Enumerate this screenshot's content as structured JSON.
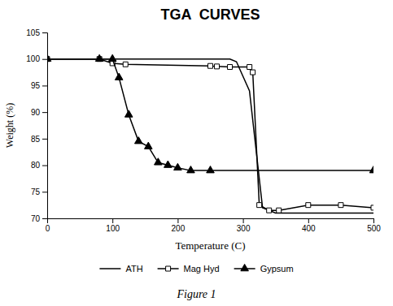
{
  "chart_data": {
    "type": "line",
    "title": "TGA  CURVES",
    "xlabel": "Temperature (C)",
    "ylabel": "Weight (%)",
    "caption": "Figure 1",
    "xlim": [
      0,
      500
    ],
    "ylim": [
      70,
      105
    ],
    "xticks": [
      0,
      100,
      200,
      300,
      400,
      500
    ],
    "yticks": [
      70,
      75,
      80,
      85,
      90,
      95,
      100,
      105
    ],
    "grid": false,
    "legend": "bottom",
    "series": [
      {
        "name": "ATH",
        "color": "#000000",
        "line_style": "solid",
        "x": [
          0,
          50,
          100,
          150,
          200,
          250,
          280,
          290,
          310,
          330,
          350,
          400,
          450,
          500
        ],
        "values": [
          100,
          100,
          100,
          100,
          100,
          100,
          100,
          99.5,
          94,
          72,
          71,
          71,
          71,
          71
        ]
      },
      {
        "name": "Mag Hyd",
        "color": "#000000",
        "line_style": "solid",
        "marker": "square-open",
        "x": [
          0,
          80,
          100,
          120,
          250,
          260,
          280,
          310,
          315,
          325,
          340,
          355,
          400,
          450,
          500
        ],
        "values": [
          100,
          100,
          99.2,
          99.0,
          98.7,
          98.6,
          98.5,
          98.5,
          97.5,
          72.5,
          71.5,
          71.5,
          72.5,
          72.5,
          72.0
        ]
      },
      {
        "name": "Gypsum",
        "color": "#000000",
        "line_style": "solid",
        "marker": "triangle-filled",
        "x": [
          0,
          80,
          100,
          110,
          125,
          140,
          155,
          170,
          185,
          200,
          220,
          250,
          500
        ],
        "values": [
          100,
          100,
          100,
          96.5,
          89.5,
          84.5,
          83.5,
          80.5,
          80,
          79.5,
          79.0,
          79.0,
          79.0
        ]
      }
    ]
  }
}
